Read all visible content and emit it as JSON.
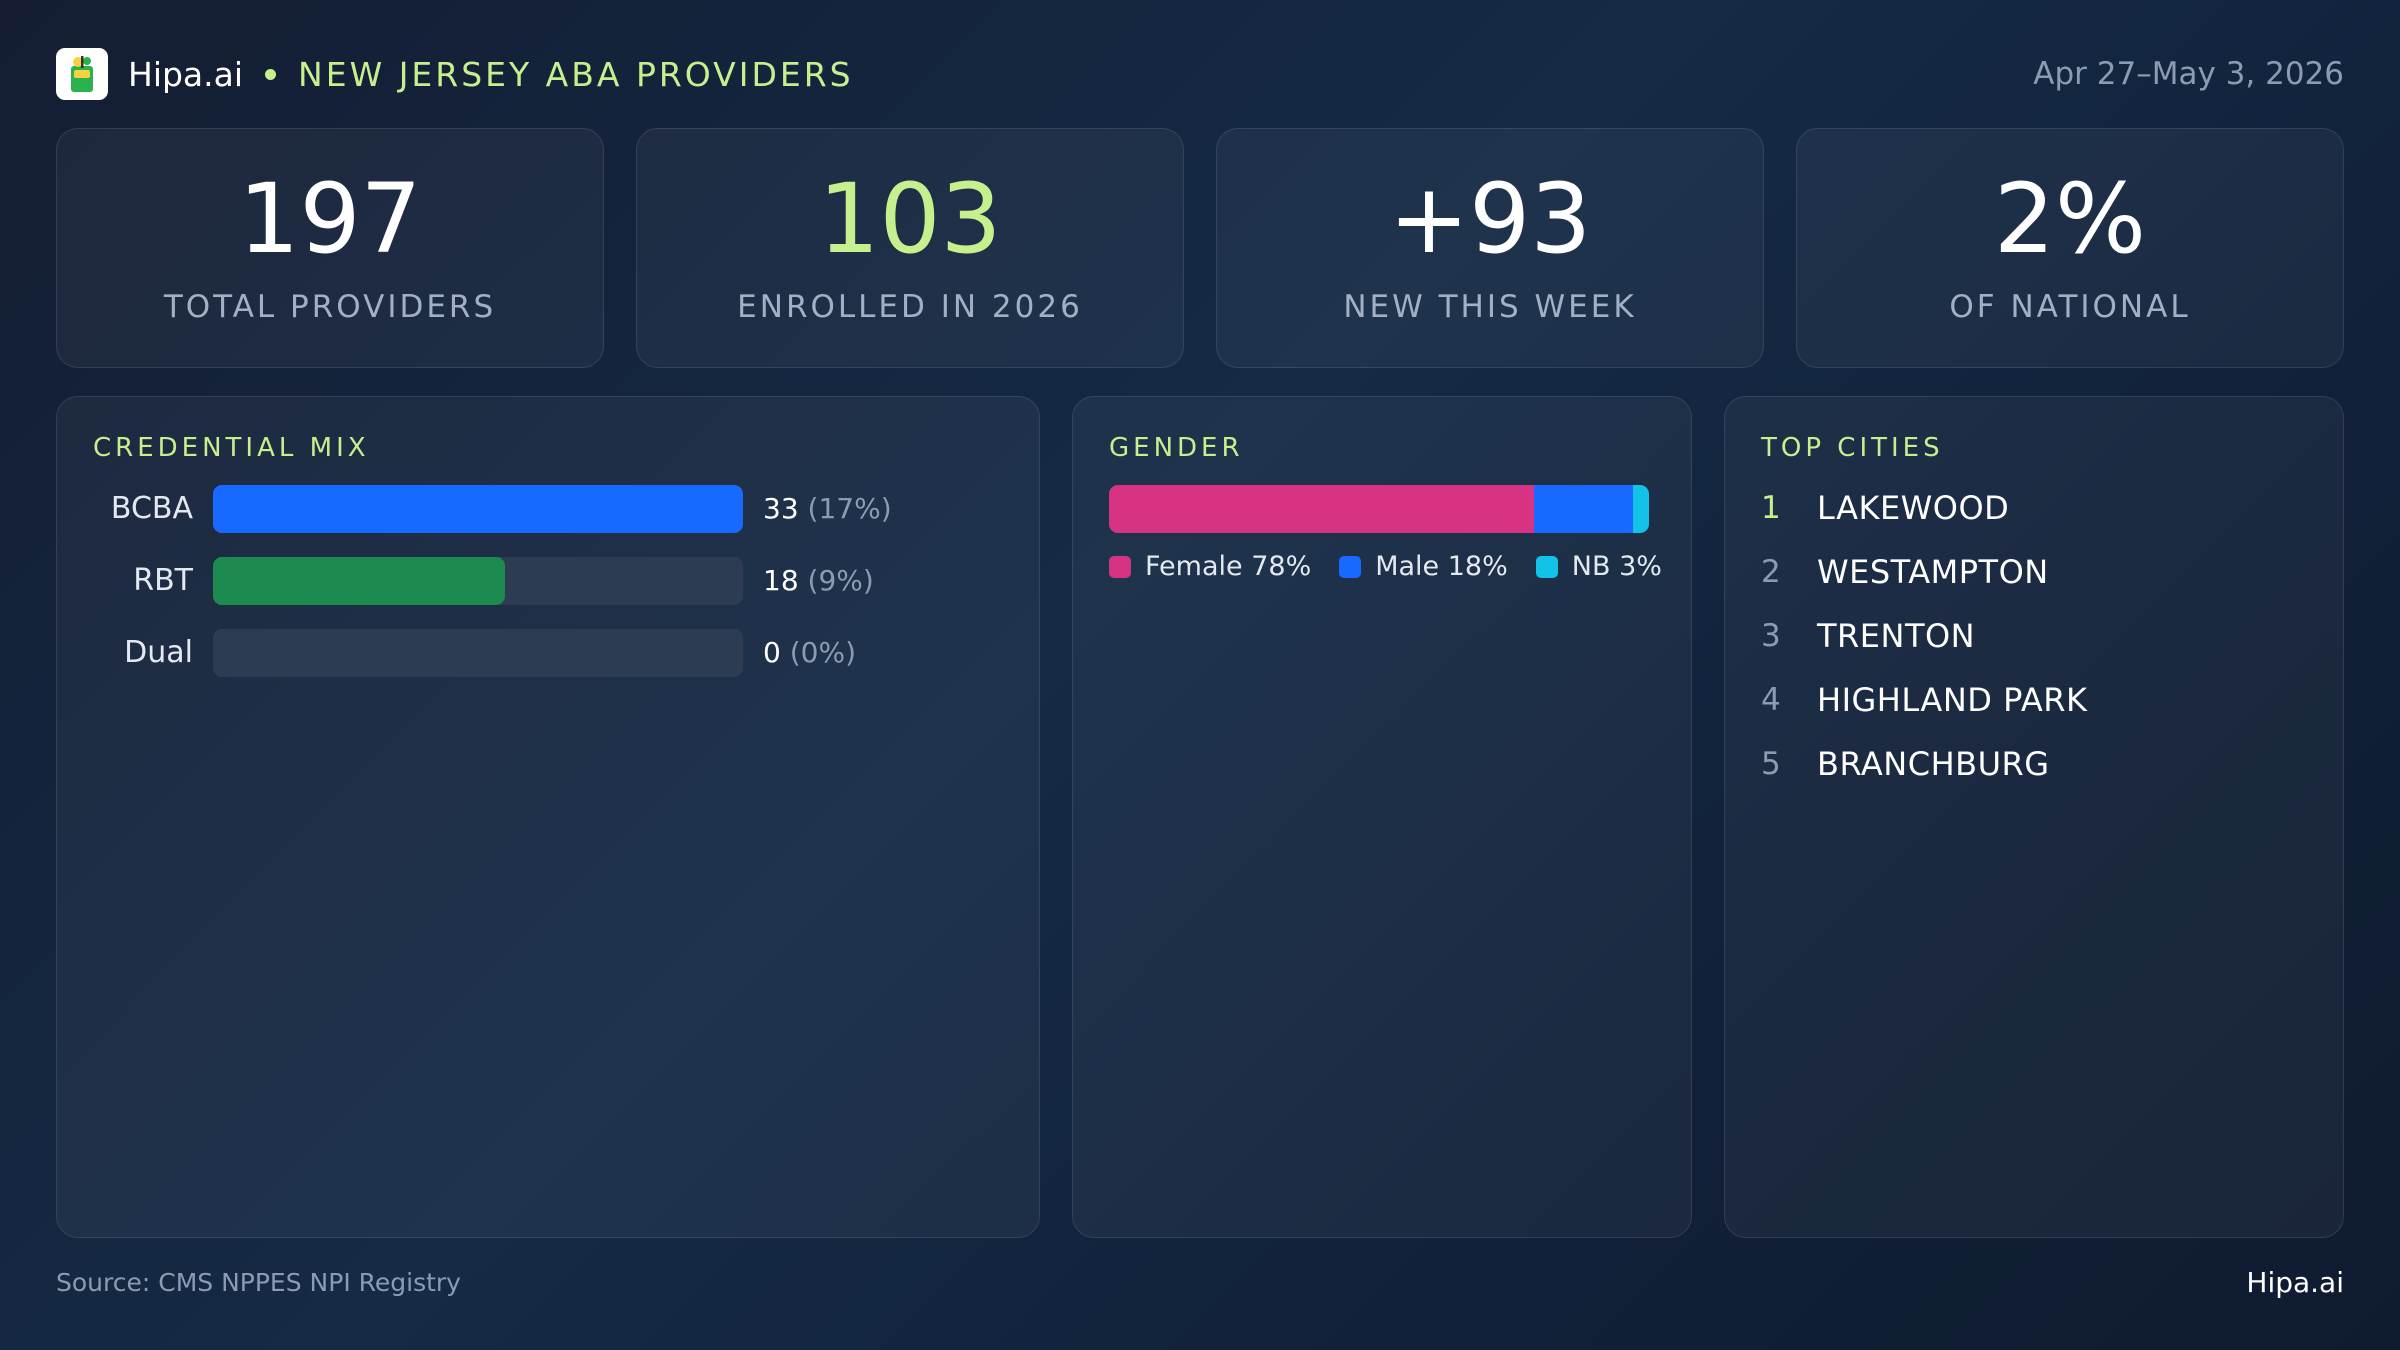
{
  "header": {
    "brand": "Hipa.ai",
    "title": "NEW JERSEY ABA PROVIDERS",
    "date_range": "Apr 27–May 3, 2026",
    "logo_icon": "drink-cup-icon"
  },
  "stats": [
    {
      "value": "197",
      "label": "TOTAL PROVIDERS",
      "accent": false
    },
    {
      "value": "103",
      "label": "ENROLLED IN 2026",
      "accent": true
    },
    {
      "value": "+93",
      "label": "NEW THIS WEEK",
      "accent": false
    },
    {
      "value": "2%",
      "label": "OF NATIONAL",
      "accent": false
    }
  ],
  "credential_mix": {
    "title": "CREDENTIAL MIX",
    "items": [
      {
        "label": "BCBA",
        "count": "33",
        "pct": "(17%)",
        "fill": 1.0,
        "color": "#1769ff"
      },
      {
        "label": "RBT",
        "count": "18",
        "pct": "(9%)",
        "fill": 0.55,
        "color": "#1d8a4f"
      },
      {
        "label": "Dual",
        "count": "0",
        "pct": "(0%)",
        "fill": 0.0,
        "color": "#2d3c53"
      }
    ]
  },
  "gender": {
    "title": "GENDER",
    "segments": [
      {
        "label": "Female 78%",
        "share": 78,
        "color": "#d63384"
      },
      {
        "label": "Male 18%",
        "share": 18,
        "color": "#1769ff"
      },
      {
        "label": "NB 3%",
        "share": 3,
        "color": "#12c2e9"
      }
    ]
  },
  "top_cities": {
    "title": "TOP CITIES",
    "items": [
      {
        "rank": "1",
        "name": "LAKEWOOD"
      },
      {
        "rank": "2",
        "name": "WESTAMPTON"
      },
      {
        "rank": "3",
        "name": "TRENTON"
      },
      {
        "rank": "4",
        "name": "HIGHLAND PARK"
      },
      {
        "rank": "5",
        "name": "BRANCHBURG"
      }
    ]
  },
  "footer": {
    "source": "Source: CMS NPPES NPI Registry",
    "brand": "Hipa.ai"
  },
  "colors": {
    "accent": "#c6f08e",
    "muted": "#8c9bb2"
  }
}
